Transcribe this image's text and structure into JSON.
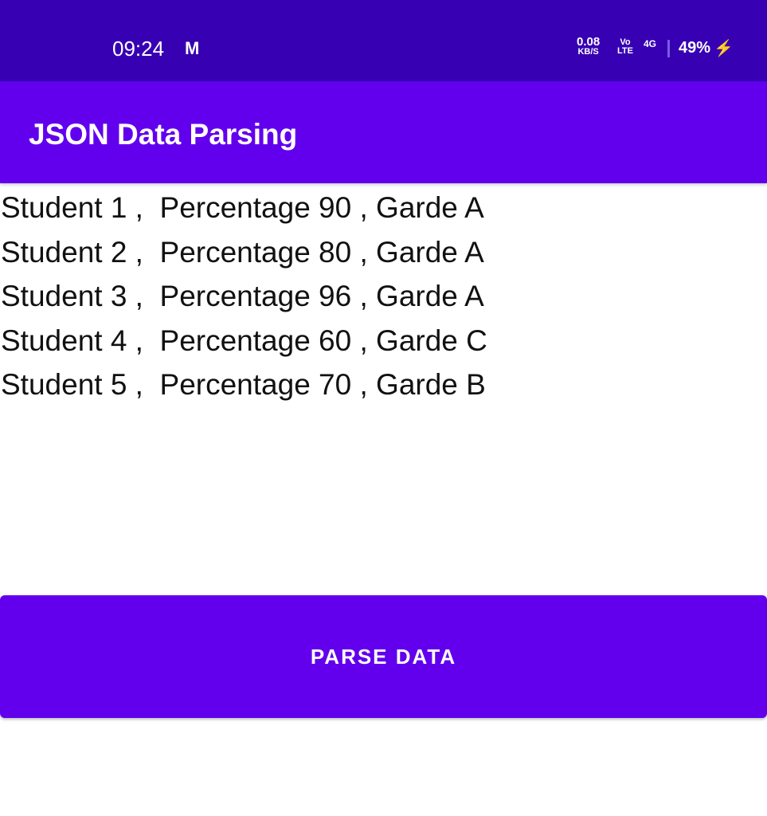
{
  "status_bar": {
    "time": "09:24",
    "notification_icon": "gmail-icon",
    "notification_glyph": "M",
    "net_speed": "0.08",
    "net_speed_unit": "KB/S",
    "volte_top": "Vo",
    "volte_bottom": "LTE",
    "network": "4G",
    "battery": "49%",
    "charging_icon": "bolt-icon"
  },
  "app_bar": {
    "title": "JSON Data Parsing"
  },
  "students": [
    "Student 1 ,  Percentage 90 , Garde A",
    "Student 2 ,  Percentage 80 , Garde A",
    "Student 3 ,  Percentage 96 , Garde A",
    "Student 4 ,  Percentage 60 , Garde C",
    "Student 5 ,  Percentage 70 , Garde B"
  ],
  "button": {
    "label": "PARSE DATA"
  },
  "colors": {
    "status_bar": "#3700b3",
    "primary": "#6200ee"
  }
}
